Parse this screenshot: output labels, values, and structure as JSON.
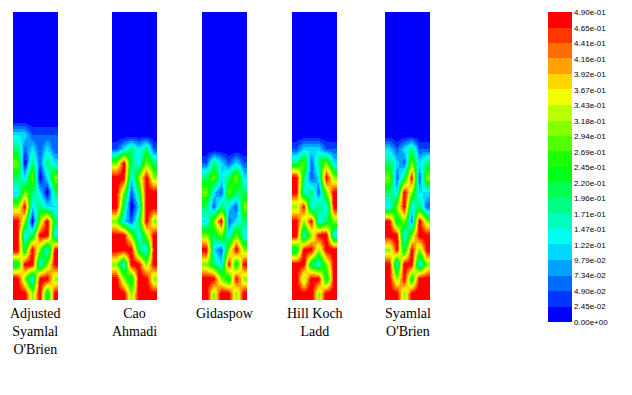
{
  "chart_data": {
    "type": "heatmap",
    "tick_labels": false,
    "colorbar": {
      "range": [
        0,
        0.49
      ],
      "ticks": [
        {
          "value": 0,
          "label": "0.00e+00"
        },
        {
          "value": 0.0245,
          "label": "2.45e-02"
        },
        {
          "value": 0.049,
          "label": "4.90e-02"
        },
        {
          "value": 0.0734,
          "label": "7.34e-02"
        },
        {
          "value": 0.0979,
          "label": "9.79e-02"
        },
        {
          "value": 0.122,
          "label": "1.22e-01"
        },
        {
          "value": 0.147,
          "label": "1.47e-01"
        },
        {
          "value": 0.171,
          "label": "1.71e-01"
        },
        {
          "value": 0.196,
          "label": "1.96e-01"
        },
        {
          "value": 0.22,
          "label": "2.20e-01"
        },
        {
          "value": 0.245,
          "label": "2.45e-01"
        },
        {
          "value": 0.269,
          "label": "2.69e-01"
        },
        {
          "value": 0.294,
          "label": "2.94e-01"
        },
        {
          "value": 0.318,
          "label": "3.18e-01"
        },
        {
          "value": 0.343,
          "label": "3.43e-01"
        },
        {
          "value": 0.367,
          "label": "3.67e-01"
        },
        {
          "value": 0.392,
          "label": "3.92e-01"
        },
        {
          "value": 0.416,
          "label": "4.16e-01"
        },
        {
          "value": 0.441,
          "label": "4.41e-01"
        },
        {
          "value": 0.465,
          "label": "4.65e-01"
        },
        {
          "value": 0.49,
          "label": "4.90e-01"
        }
      ]
    },
    "panels": [
      {
        "title": "Adjusted Syamlal O'Brien",
        "cells": [
          [
            0,
            0,
            0,
            0,
            0,
            0
          ],
          [
            0,
            0,
            0,
            0,
            0,
            0
          ],
          [
            0,
            0,
            0,
            0,
            0,
            0
          ],
          [
            0,
            0,
            0,
            0,
            0,
            0
          ],
          [
            0,
            0,
            0,
            0,
            0,
            0
          ],
          [
            0,
            0,
            0,
            0,
            0,
            0
          ],
          [
            0,
            0,
            0,
            0,
            0,
            0
          ],
          [
            0,
            0,
            0,
            0,
            0,
            0
          ],
          [
            0.12,
            0.12,
            0.05,
            0.05,
            0.05,
            0.05
          ],
          [
            0.2,
            0.05,
            0.12,
            0.05,
            0.12,
            0.05
          ],
          [
            0.3,
            0,
            0.2,
            0.05,
            0.2,
            0.12
          ],
          [
            0.2,
            0.12,
            0.3,
            0,
            0.12,
            0.3
          ],
          [
            0.12,
            0.3,
            0.2,
            0.12,
            0,
            0.2
          ],
          [
            0.3,
            0.49,
            0.12,
            0.2,
            0.12,
            0.12
          ],
          [
            0.49,
            0.3,
            0,
            0.3,
            0.49,
            0.2
          ],
          [
            0.49,
            0.12,
            0.2,
            0.49,
            0.49,
            0.12
          ],
          [
            0.49,
            0.2,
            0.49,
            0.3,
            0.12,
            0.49
          ],
          [
            0.2,
            0.49,
            0.49,
            0.12,
            0.3,
            0.49
          ],
          [
            0.49,
            0.3,
            0.12,
            0.49,
            0.49,
            0.3
          ],
          [
            0.49,
            0.49,
            0.3,
            0.49,
            0.2,
            0.49
          ]
        ]
      },
      {
        "title": "Cao Ahmadi",
        "cells": [
          [
            0,
            0,
            0,
            0,
            0,
            0
          ],
          [
            0,
            0,
            0,
            0,
            0,
            0
          ],
          [
            0,
            0,
            0,
            0,
            0,
            0
          ],
          [
            0,
            0,
            0,
            0,
            0,
            0
          ],
          [
            0,
            0,
            0,
            0,
            0,
            0
          ],
          [
            0,
            0,
            0,
            0,
            0,
            0
          ],
          [
            0,
            0,
            0,
            0,
            0,
            0
          ],
          [
            0,
            0,
            0,
            0,
            0,
            0
          ],
          [
            0,
            0,
            0,
            0,
            0,
            0
          ],
          [
            0.05,
            0.12,
            0.2,
            0.12,
            0.2,
            0.05
          ],
          [
            0.3,
            0.49,
            0.2,
            0.12,
            0.3,
            0.2
          ],
          [
            0.49,
            0.49,
            0.12,
            0.3,
            0.49,
            0.3
          ],
          [
            0.49,
            0.3,
            0.05,
            0.2,
            0.49,
            0.49
          ],
          [
            0.49,
            0.2,
            0,
            0.12,
            0.49,
            0.49
          ],
          [
            0.3,
            0.12,
            0.05,
            0.2,
            0.49,
            0.3
          ],
          [
            0.49,
            0.49,
            0.3,
            0.12,
            0.3,
            0.49
          ],
          [
            0.49,
            0.49,
            0.49,
            0.2,
            0.12,
            0.49
          ],
          [
            0.3,
            0.12,
            0.49,
            0.49,
            0.3,
            0.49
          ],
          [
            0.49,
            0.3,
            0.2,
            0.49,
            0.49,
            0.3
          ],
          [
            0.49,
            0.49,
            0.3,
            0.49,
            0.49,
            0.49
          ]
        ]
      },
      {
        "title": "Gidaspow",
        "cells": [
          [
            0,
            0,
            0,
            0,
            0,
            0
          ],
          [
            0,
            0,
            0,
            0,
            0,
            0
          ],
          [
            0,
            0,
            0,
            0,
            0,
            0
          ],
          [
            0,
            0,
            0,
            0,
            0,
            0
          ],
          [
            0,
            0,
            0,
            0,
            0,
            0
          ],
          [
            0,
            0,
            0,
            0,
            0,
            0
          ],
          [
            0,
            0,
            0,
            0,
            0,
            0
          ],
          [
            0,
            0,
            0,
            0,
            0,
            0
          ],
          [
            0,
            0,
            0,
            0,
            0,
            0
          ],
          [
            0,
            0,
            0,
            0,
            0,
            0
          ],
          [
            0.05,
            0.2,
            0.12,
            0.05,
            0.12,
            0.05
          ],
          [
            0.2,
            0.3,
            0.12,
            0.2,
            0.3,
            0.12
          ],
          [
            0.3,
            0.12,
            0.05,
            0.3,
            0.2,
            0.2
          ],
          [
            0.2,
            0.05,
            0.2,
            0.12,
            0.05,
            0.3
          ],
          [
            0.12,
            0.3,
            0.49,
            0.05,
            0.12,
            0.2
          ],
          [
            0.3,
            0.2,
            0.3,
            0.12,
            0.3,
            0.12
          ],
          [
            0.49,
            0.12,
            0.05,
            0.3,
            0.49,
            0.3
          ],
          [
            0.3,
            0.2,
            0.12,
            0.49,
            0.2,
            0.49
          ],
          [
            0.49,
            0.49,
            0.3,
            0.2,
            0.49,
            0.3
          ],
          [
            0.49,
            0.3,
            0.49,
            0.49,
            0.3,
            0.49
          ]
        ]
      },
      {
        "title": "Hill Koch Ladd",
        "cells": [
          [
            0,
            0,
            0,
            0,
            0,
            0
          ],
          [
            0,
            0,
            0,
            0,
            0,
            0
          ],
          [
            0,
            0,
            0,
            0,
            0,
            0
          ],
          [
            0,
            0,
            0,
            0,
            0,
            0
          ],
          [
            0,
            0,
            0,
            0,
            0,
            0
          ],
          [
            0,
            0,
            0,
            0,
            0,
            0
          ],
          [
            0,
            0,
            0,
            0,
            0,
            0
          ],
          [
            0,
            0,
            0,
            0,
            0,
            0
          ],
          [
            0,
            0,
            0,
            0,
            0,
            0
          ],
          [
            0.05,
            0.12,
            0.12,
            0.12,
            0.05,
            0.05
          ],
          [
            0.2,
            0.3,
            0.05,
            0.2,
            0.3,
            0.12
          ],
          [
            0.49,
            0.2,
            0.05,
            0.12,
            0.49,
            0.3
          ],
          [
            0.49,
            0.12,
            0.2,
            0.05,
            0.3,
            0.49
          ],
          [
            0.3,
            0.49,
            0.12,
            0.2,
            0.12,
            0.49
          ],
          [
            0.49,
            0.3,
            0.49,
            0.12,
            0.2,
            0.3
          ],
          [
            0.49,
            0.12,
            0.3,
            0.49,
            0.49,
            0.12
          ],
          [
            0.2,
            0.49,
            0.49,
            0.3,
            0.49,
            0.49
          ],
          [
            0.49,
            0.49,
            0.2,
            0.12,
            0.3,
            0.49
          ],
          [
            0.49,
            0.3,
            0.49,
            0.49,
            0.2,
            0.49
          ],
          [
            0.49,
            0.49,
            0.49,
            0.3,
            0.49,
            0.49
          ]
        ]
      },
      {
        "title": "Syamlal O'Brien",
        "cells": [
          [
            0,
            0,
            0,
            0,
            0,
            0
          ],
          [
            0,
            0,
            0,
            0,
            0,
            0
          ],
          [
            0,
            0,
            0,
            0,
            0,
            0
          ],
          [
            0,
            0,
            0,
            0,
            0,
            0
          ],
          [
            0,
            0,
            0,
            0,
            0,
            0
          ],
          [
            0,
            0,
            0,
            0,
            0,
            0
          ],
          [
            0,
            0,
            0,
            0,
            0,
            0
          ],
          [
            0,
            0,
            0,
            0,
            0,
            0
          ],
          [
            0,
            0,
            0,
            0,
            0,
            0
          ],
          [
            0.12,
            0.05,
            0.12,
            0.2,
            0.05,
            0.05
          ],
          [
            0.2,
            0.12,
            0.05,
            0.3,
            0.12,
            0.2
          ],
          [
            0.3,
            0.05,
            0.2,
            0.49,
            0.05,
            0.3
          ],
          [
            0.2,
            0.12,
            0.49,
            0.3,
            0.12,
            0.12
          ],
          [
            0.12,
            0.3,
            0.49,
            0.12,
            0.2,
            0.05
          ],
          [
            0.49,
            0.2,
            0.3,
            0.05,
            0.49,
            0.3
          ],
          [
            0.49,
            0.49,
            0.12,
            0.3,
            0.49,
            0.49
          ],
          [
            0.3,
            0.49,
            0.2,
            0.49,
            0.3,
            0.49
          ],
          [
            0.49,
            0.12,
            0.49,
            0.49,
            0.12,
            0.3
          ],
          [
            0.49,
            0.3,
            0.49,
            0.2,
            0.49,
            0.49
          ],
          [
            0.49,
            0.49,
            0.3,
            0.49,
            0.49,
            0.49
          ]
        ]
      }
    ]
  }
}
